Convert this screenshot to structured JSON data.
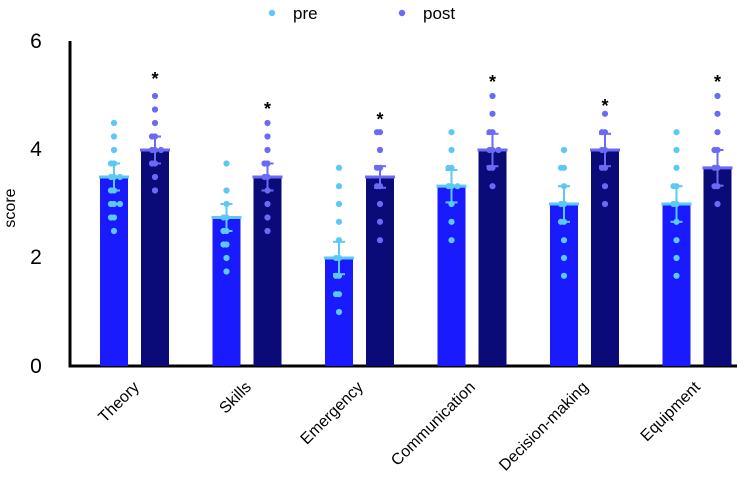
{
  "chart_data": {
    "type": "bar",
    "title": "",
    "xlabel": "",
    "ylabel": "score",
    "ylim": [
      0,
      6
    ],
    "yticks": [
      0,
      2,
      4,
      6
    ],
    "categories": [
      "Theory",
      "Skills",
      "Emergency",
      "Communication",
      "Decision-making",
      "Equipment"
    ],
    "legend_position": "top",
    "series": [
      {
        "name": "pre",
        "bar_color": "#1a1aff",
        "dot_color": "#5cc8f5",
        "values": [
          3.5,
          2.75,
          2.0,
          3.33,
          3.0,
          3.0
        ],
        "error": [
          0.25,
          0.25,
          0.3,
          0.3,
          0.33,
          0.33
        ],
        "points": [
          [
            2.5,
            2.75,
            2.75,
            3.0,
            3.0,
            3.0,
            3.25,
            3.25,
            3.5,
            3.5,
            3.5,
            3.75,
            3.75,
            4.0,
            4.25,
            4.5
          ],
          [
            1.75,
            2.0,
            2.25,
            2.25,
            2.5,
            2.5,
            2.75,
            2.75,
            3.0,
            3.25,
            3.75
          ],
          [
            1.0,
            1.33,
            1.33,
            1.67,
            1.67,
            2.0,
            2.0,
            2.33,
            2.67,
            3.0,
            3.33,
            3.67
          ],
          [
            2.33,
            2.67,
            3.0,
            3.33,
            3.33,
            3.33,
            3.67,
            3.67,
            4.0,
            4.33
          ],
          [
            1.67,
            2.0,
            2.33,
            2.67,
            2.67,
            3.0,
            3.0,
            3.33,
            3.67,
            3.67,
            4.0
          ],
          [
            1.67,
            2.0,
            2.33,
            2.67,
            3.0,
            3.0,
            3.33,
            3.33,
            3.67,
            4.0,
            4.33
          ]
        ]
      },
      {
        "name": "post",
        "bar_color": "#0a0a78",
        "dot_color": "#6a6af5",
        "values": [
          4.0,
          3.5,
          3.5,
          4.0,
          4.0,
          3.67
        ],
        "error": [
          0.25,
          0.25,
          0.2,
          0.3,
          0.3,
          0.33
        ],
        "points": [
          [
            3.25,
            3.5,
            3.75,
            3.75,
            4.0,
            4.0,
            4.0,
            4.25,
            4.25,
            4.5,
            4.75,
            5.0
          ],
          [
            2.5,
            2.75,
            3.0,
            3.25,
            3.5,
            3.5,
            3.75,
            3.75,
            4.0,
            4.25,
            4.5
          ],
          [
            2.33,
            2.67,
            3.0,
            3.33,
            3.33,
            3.67,
            3.67,
            4.0,
            4.33,
            4.33
          ],
          [
            3.33,
            3.67,
            3.67,
            4.0,
            4.0,
            4.0,
            4.33,
            4.33,
            4.67,
            5.0
          ],
          [
            3.0,
            3.33,
            3.67,
            3.67,
            4.0,
            4.0,
            4.33,
            4.33,
            4.67
          ],
          [
            3.0,
            3.33,
            3.33,
            3.67,
            3.67,
            4.0,
            4.0,
            4.33,
            4.67,
            5.0
          ]
        ]
      }
    ],
    "significance_marker": "*",
    "significant": [
      true,
      true,
      true,
      true,
      true,
      true
    ],
    "marker_values": [
      5.35,
      4.8,
      4.6,
      5.3,
      4.85,
      5.3
    ]
  }
}
